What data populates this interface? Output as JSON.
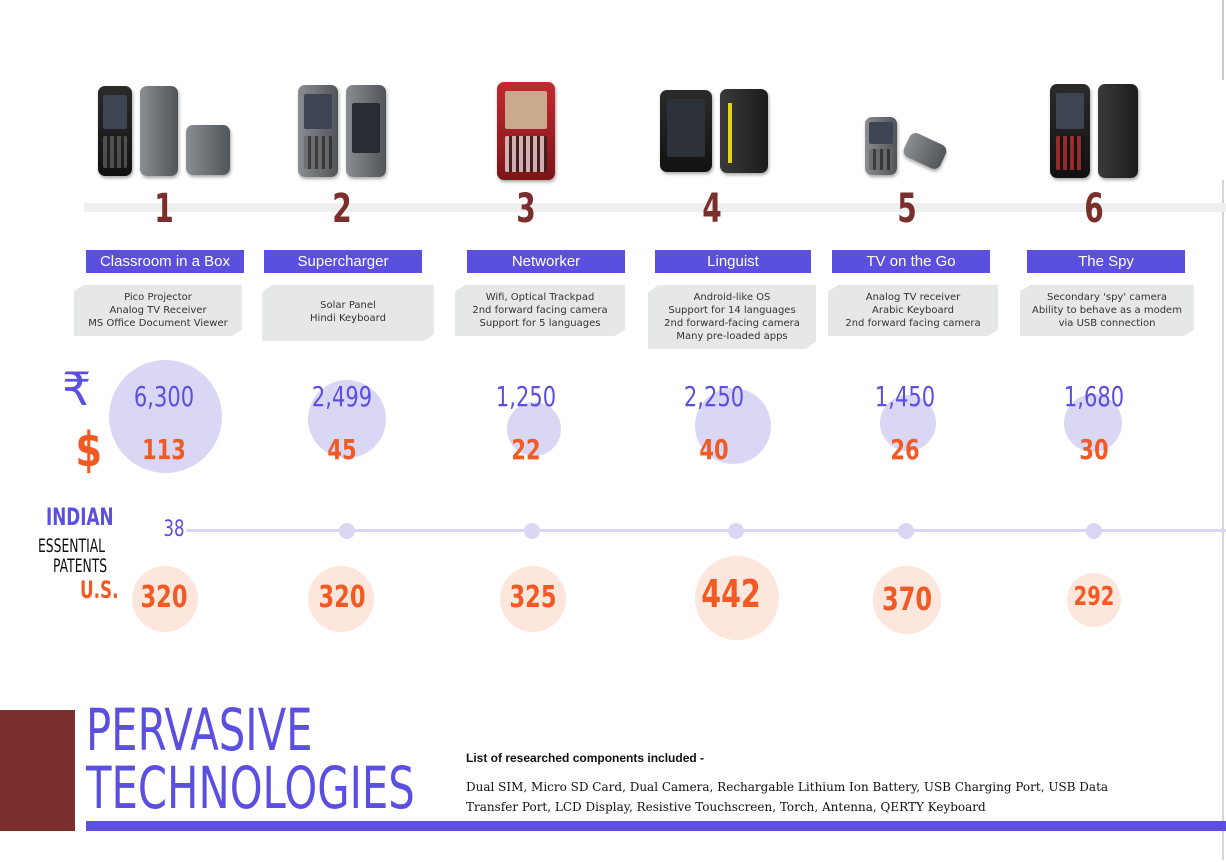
{
  "heading": {
    "line1": "PERVASIVE",
    "line2": "TECHNOLOGIES"
  },
  "symbols": {
    "rupee": "₹",
    "dollar": "$"
  },
  "patent_labels": {
    "indian": "INDIAN",
    "essential": "ESSENTIAL",
    "patents": "PATENTS",
    "us": "U.S."
  },
  "components": {
    "heading": "List of researched components included -",
    "text": "Dual SIM, Micro SD Card, Dual Camera, Rechargable Lithium Ion Battery, USB Charging Port, USB Data Transfer Port, LCD Display, Resistive Touchscreen, Torch, Antenna, QERTY Keyboard"
  },
  "phones": [
    {
      "number": "1",
      "title": "Classroom in a Box",
      "desc": [
        "Pico Projector",
        "Analog TV Receiver",
        "MS Office Document Viewer"
      ],
      "price_inr": "6,300",
      "price_usd": "113",
      "indian_patents": "38",
      "us_patents": "320"
    },
    {
      "number": "2",
      "title": "Supercharger",
      "desc": [
        "Solar Panel",
        "Hindi Keyboard"
      ],
      "price_inr": "2,499",
      "price_usd": "45",
      "indian_patents": "",
      "us_patents": "320"
    },
    {
      "number": "3",
      "title": "Networker",
      "desc": [
        "Wifi, Optical Trackpad",
        "2nd forward facing camera",
        "Support for 5 languages"
      ],
      "price_inr": "1,250",
      "price_usd": "22",
      "indian_patents": "",
      "us_patents": "325"
    },
    {
      "number": "4",
      "title": "Linguist",
      "desc": [
        "Android-like OS",
        "Support for 14 languages",
        "2nd forward-facing camera",
        "Many pre-loaded apps"
      ],
      "price_inr": "2,250",
      "price_usd": "40",
      "indian_patents": "",
      "us_patents": "442"
    },
    {
      "number": "5",
      "title": "TV on the Go",
      "desc": [
        "Analog TV receiver",
        "Arabic Keyboard",
        "2nd forward facing camera"
      ],
      "price_inr": "1,450",
      "price_usd": "26",
      "indian_patents": "",
      "us_patents": "370"
    },
    {
      "number": "6",
      "title": "The Spy",
      "desc": [
        "Secondary 'spy' camera",
        "Ability to behave as a modem",
        "via USB connection"
      ],
      "price_inr": "1,680",
      "price_usd": "30",
      "indian_patents": "",
      "us_patents": "292"
    }
  ],
  "colors": {
    "purple": "#5b4fe0",
    "orange": "#f15a24",
    "maroon": "#7a2f2c",
    "lavender": "#dad7f5",
    "peach": "#fde6dc"
  }
}
